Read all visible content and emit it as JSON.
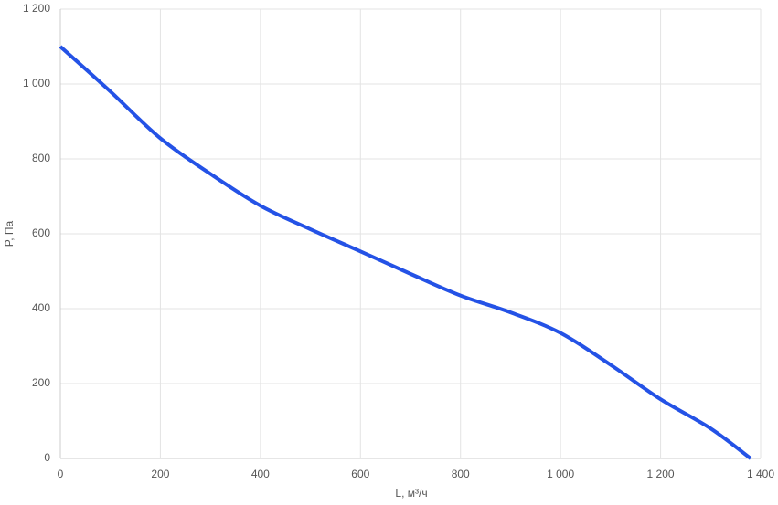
{
  "chart_data": {
    "type": "line",
    "x_label": "L, м³/ч",
    "y_label": "P, Па",
    "x": [
      0,
      100,
      200,
      300,
      400,
      500,
      600,
      700,
      800,
      900,
      1000,
      1100,
      1200,
      1300,
      1380
    ],
    "series": [
      {
        "color": "#2452e6",
        "values": [
          1100,
          980,
          855,
          760,
          675,
          612,
          553,
          493,
          435,
          390,
          335,
          250,
          158,
          80,
          0
        ]
      }
    ],
    "xlim": [
      0,
      1400
    ],
    "ylim": [
      0,
      1200
    ],
    "xticks": [
      0,
      200,
      400,
      600,
      800,
      {
        "value": 1000,
        "label": "1 000"
      },
      {
        "value": 1200,
        "label": "1 200"
      },
      {
        "value": 1400,
        "label": "1 400"
      }
    ],
    "yticks": [
      0,
      200,
      400,
      600,
      800,
      {
        "value": 1000,
        "label": "1 000"
      },
      {
        "value": 1200,
        "label": "1 200"
      }
    ],
    "grid": true
  }
}
